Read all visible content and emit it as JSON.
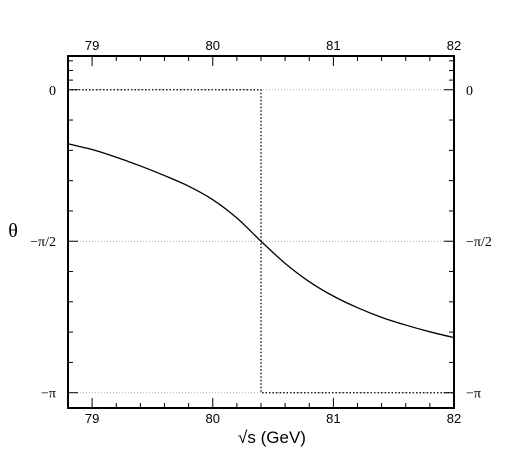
{
  "chart_data": {
    "type": "line",
    "title": "",
    "xlabel": "√s   (GeV)",
    "ylabel": "θ",
    "xlim": [
      78.8,
      82.0
    ],
    "ylim": [
      -3.3,
      0.35
    ],
    "xticks": [
      79,
      80,
      81,
      82
    ],
    "xtick_labels": [
      "79",
      "80",
      "81",
      "82"
    ],
    "yticks": [
      0,
      -1.5708,
      -3.1416
    ],
    "ytick_labels": [
      "0",
      "−π/2",
      "−π"
    ],
    "grid": "dotted at y ticks",
    "series": [
      {
        "style": "solid",
        "x": [
          78.8,
          79.0,
          79.2,
          79.4,
          79.6,
          79.8,
          80.0,
          80.2,
          80.4,
          80.6,
          80.8,
          81.0,
          81.2,
          81.4,
          81.6,
          81.8,
          82.0
        ],
        "y": [
          -0.56,
          -0.62,
          -0.7,
          -0.79,
          -0.89,
          -1.0,
          -1.14,
          -1.33,
          -1.5708,
          -1.8,
          -1.99,
          -2.14,
          -2.26,
          -2.36,
          -2.44,
          -2.51,
          -2.57
        ]
      },
      {
        "style": "dotted",
        "x": [
          78.8,
          80.4,
          80.4,
          82.0
        ],
        "y": [
          0,
          0,
          -3.1416,
          -3.1416
        ]
      }
    ]
  }
}
